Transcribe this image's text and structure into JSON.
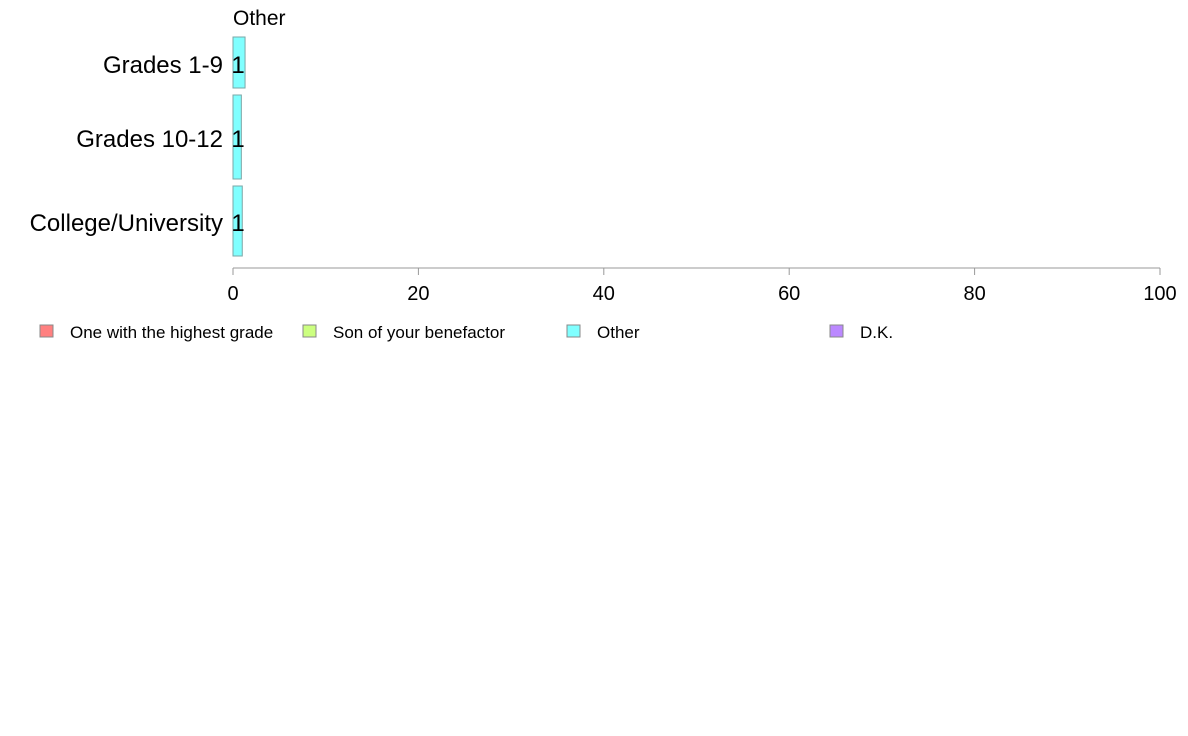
{
  "chart_data": {
    "type": "bar",
    "orientation": "horizontal",
    "title": "",
    "panel_title": "Other",
    "categories": [
      "Grades 1-9",
      "Grades 10-12",
      "College/University"
    ],
    "series": [
      {
        "name": "One with the highest grade",
        "color": "#ff8080",
        "values": [
          0,
          0,
          0
        ]
      },
      {
        "name": "Son of your benefactor",
        "color": "#ccff80",
        "values": [
          0,
          0,
          0
        ]
      },
      {
        "name": "Other",
        "color": "#80ffff",
        "values": [
          1.3,
          0.9,
          1.0
        ]
      },
      {
        "name": "D.K.",
        "color": "#bb88ff",
        "values": [
          0,
          0,
          0
        ]
      }
    ],
    "data_labels": [
      "1",
      "1",
      "1"
    ],
    "xlim": [
      0,
      100
    ],
    "x_ticks": [
      0,
      20,
      40,
      60,
      80,
      100
    ],
    "xlabel": "",
    "ylabel": "",
    "grid": false,
    "legend_placement": "bottom"
  }
}
